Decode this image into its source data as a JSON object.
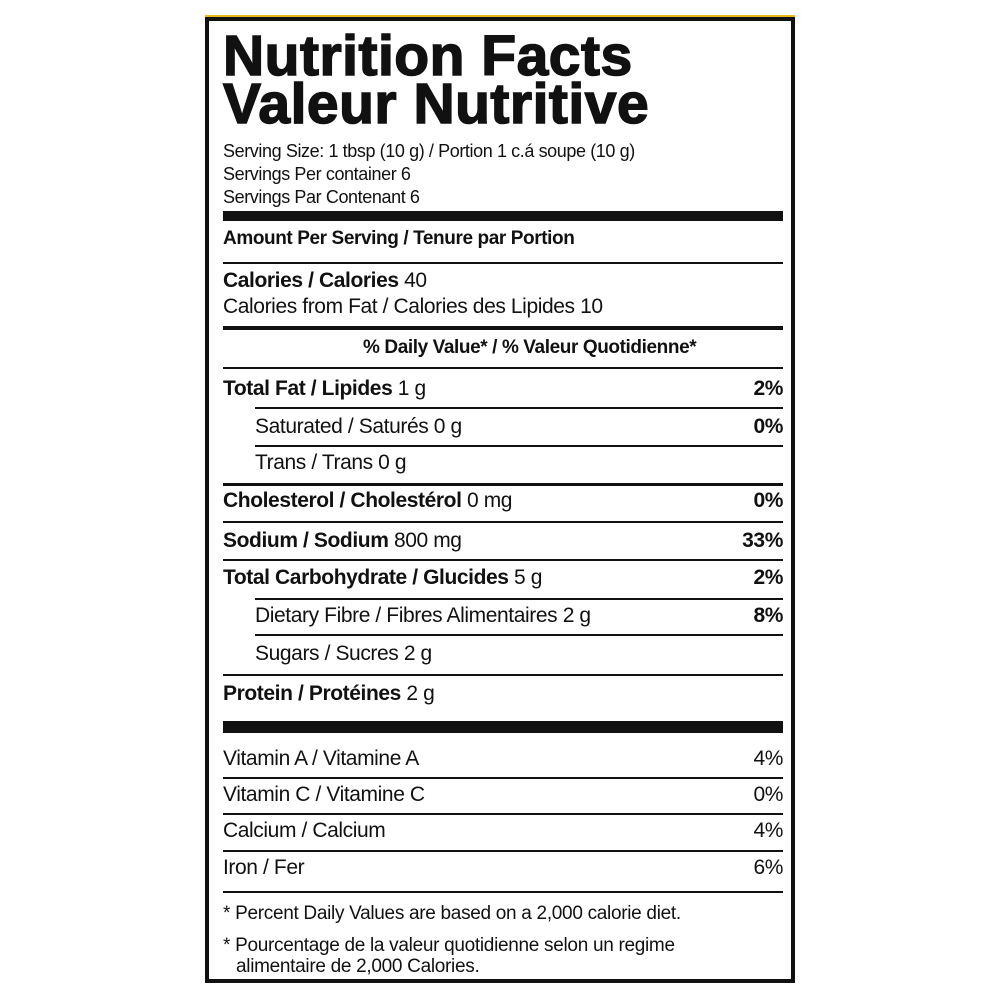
{
  "title_en": "Nutrition Facts",
  "title_fr": "Valeur Nutritive",
  "serving_size": "Serving Size: 1 tbsp (10 g) / Portion 1 c.á soupe (10 g)",
  "servings_en": "Servings Per container 6",
  "servings_fr": "Servings Par Contenant 6",
  "amount_header": "Amount Per Serving / Tenure par Portion",
  "calories": {
    "label": "Calories / Calories",
    "value": "40"
  },
  "calories_fat": "Calories from Fat / Calories des Lipides 10",
  "dv_header": "% Daily Value* / % Valeur Quotidienne*",
  "nutrients": [
    {
      "label": "Total Fat / Lipides",
      "amount": "1 g",
      "pct": "2%"
    },
    {
      "label": "Saturated / Saturés",
      "amount": "0 g",
      "pct": "0%"
    },
    {
      "label": "Trans / Trans",
      "amount": "0 g",
      "pct": ""
    },
    {
      "label": "Cholesterol / Cholestérol",
      "amount": "0 mg",
      "pct": "0%"
    },
    {
      "label": "Sodium / Sodium",
      "amount": "800 mg",
      "pct": "33%"
    },
    {
      "label": "Total Carbohydrate / Glucides",
      "amount": "5 g",
      "pct": "2%"
    },
    {
      "label": "Dietary Fibre / Fibres Alimentaires",
      "amount": "2 g",
      "pct": "8%"
    },
    {
      "label": "Sugars / Sucres",
      "amount": "2 g",
      "pct": ""
    },
    {
      "label": "Protein / Protéines",
      "amount": "2 g",
      "pct": ""
    }
  ],
  "vitamins": [
    {
      "label": "Vitamin A / Vitamine A",
      "pct": "4%"
    },
    {
      "label": "Vitamin C / Vitamine C",
      "pct": "0%"
    },
    {
      "label": "Calcium / Calcium",
      "pct": "4%"
    },
    {
      "label": "Iron / Fer",
      "pct": "6%"
    }
  ],
  "footnote_en": "* Percent Daily Values are based on a 2,000 calorie diet.",
  "footnote_fr_1": "* Pourcentage de la valeur quotidienne selon un regime",
  "footnote_fr_2": "alimentaire de 2,000 Calories."
}
